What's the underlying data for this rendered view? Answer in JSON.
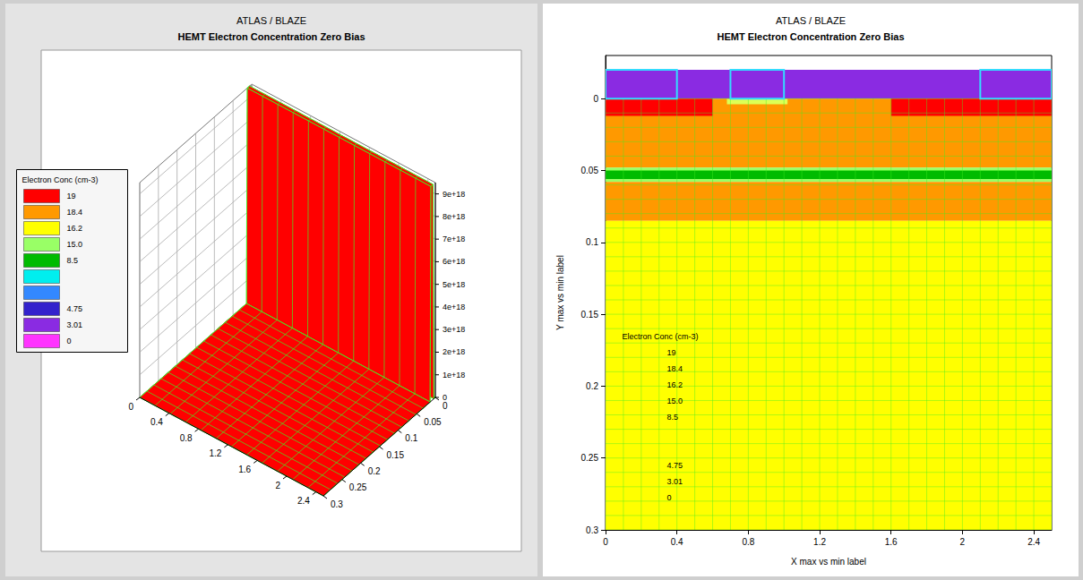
{
  "chart_data": [
    {
      "type": "surface3d",
      "title": "ATLAS / BLAZE",
      "subtitle": "HEMT Electron Concentration Zero Bias",
      "xlim": [
        0,
        2.5
      ],
      "xticks": [
        0,
        0.4,
        0.8,
        1.2,
        1.6,
        2,
        2.4
      ],
      "ylim": [
        0,
        0.3
      ],
      "yticks": [
        0,
        0.05,
        0.1,
        0.15,
        0.2,
        0.25,
        0.3
      ],
      "zlim": [
        0,
        9.5e+18
      ],
      "zticks": [
        0,
        {
          "value": 1e+18,
          "label": "1e+18"
        },
        {
          "value": 2e+18,
          "label": "2e+18"
        },
        {
          "value": 3e+18,
          "label": "3e+18"
        },
        {
          "value": 4e+18,
          "label": "4e+18"
        },
        {
          "value": 5e+18,
          "label": "5e+18"
        },
        {
          "value": 6e+18,
          "label": "6e+18"
        },
        {
          "value": 7e+18,
          "label": "7e+18"
        },
        {
          "value": 8e+18,
          "label": "8e+18"
        },
        {
          "value": 9e+18,
          "label": "9e+18"
        }
      ],
      "profile": {
        "y": [
          0,
          0.004,
          0.006,
          0.012,
          0.014,
          0.3
        ],
        "z": [
          0,
          0,
          9.5e+18,
          9.5e+18,
          0,
          0
        ]
      },
      "color": "#ff0000",
      "grid": true,
      "legend": "left",
      "legend_title": "Electron Conc (cm-3)",
      "levels": [
        {
          "label": "19",
          "color": "#ff0000"
        },
        {
          "label": "18.4",
          "color": "#ff9900"
        },
        {
          "label": "16.2",
          "color": "#ffff00"
        },
        {
          "label": "15.0",
          "color": "#99ff66"
        },
        {
          "label": "8.5",
          "color": "#00bb00"
        },
        {
          "label": null,
          "color": "#00eeee"
        },
        {
          "label": null,
          "color": "#3388ff"
        },
        {
          "label": "4.75",
          "color": "#3322cc"
        },
        {
          "label": "3.01",
          "color": "#8a2be2"
        },
        {
          "label": "0",
          "color": "#ff33ff"
        }
      ]
    },
    {
      "type": "contour",
      "title": "ATLAS / BLAZE",
      "subtitle": "HEMT Electron Concentration Zero Bias",
      "x_label": "X max vs min label",
      "y_label": "Y max vs min label",
      "xlim": [
        0,
        2.5
      ],
      "xticks": [
        0,
        0.4,
        0.8,
        1.2,
        1.6,
        2,
        2.4
      ],
      "ylim": [
        -0.03,
        0.3
      ],
      "yticks": [
        0,
        0.05,
        0.1,
        0.15,
        0.2,
        0.25,
        0.3
      ],
      "regions": [
        {
          "x": [
            0,
            2.5
          ],
          "y": [
            -0.02,
            0
          ],
          "color": "#8a2be2"
        },
        {
          "x": [
            0,
            2.5
          ],
          "y": [
            0,
            0.048
          ],
          "color": "#ff9900"
        },
        {
          "x": [
            0,
            0.6
          ],
          "y": [
            0,
            0.012
          ],
          "color": "#ff0000"
        },
        {
          "x": [
            1.6,
            2.5
          ],
          "y": [
            0,
            0.012
          ],
          "color": "#ff0000"
        },
        {
          "x": [
            0.68,
            1.02
          ],
          "y": [
            0,
            0.004
          ],
          "color": "#ddff55"
        },
        {
          "x": [
            0,
            2.5
          ],
          "y": [
            0.048,
            0.058
          ],
          "color": "#99ff66"
        },
        {
          "x": [
            0,
            2.5
          ],
          "y": [
            0.05,
            0.056
          ],
          "color": "#00bb00"
        },
        {
          "x": [
            0,
            2.5
          ],
          "y": [
            0.058,
            0.085
          ],
          "color": "#ff9900"
        },
        {
          "x": [
            0,
            2.5
          ],
          "y": [
            0.085,
            0.3
          ],
          "color": "#ffff00"
        }
      ],
      "electrodes": [
        {
          "x": [
            0,
            0.4
          ],
          "y": [
            -0.02,
            0
          ],
          "color": "#33ddff"
        },
        {
          "x": [
            0.7,
            1.0
          ],
          "y": [
            -0.02,
            0
          ],
          "color": "#33ddff"
        },
        {
          "x": [
            2.1,
            2.5
          ],
          "y": [
            -0.02,
            0
          ],
          "color": "#33ddff"
        }
      ],
      "grid": true,
      "legend": "lower left",
      "legend_title": "Electron Conc (cm-3)",
      "levels": [
        {
          "label": "19",
          "color": "#ff0000"
        },
        {
          "label": "18.4",
          "color": "#ff9900"
        },
        {
          "label": "16.2",
          "color": "#ffff00"
        },
        {
          "label": "15.0",
          "color": "#99ff66"
        },
        {
          "label": "8.5",
          "color": "#00bb00"
        },
        {
          "label": null,
          "color": "#00eeee"
        },
        {
          "label": null,
          "color": "#3388ff"
        },
        {
          "label": "4.75",
          "color": "#3322cc"
        },
        {
          "label": "3.01",
          "color": "#8a2be2"
        },
        {
          "label": "0",
          "color": "#ff33ff"
        }
      ]
    }
  ]
}
